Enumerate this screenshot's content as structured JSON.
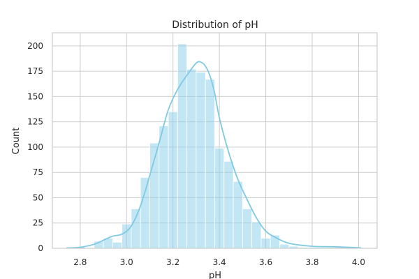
{
  "chart_data": {
    "type": "bar",
    "title": "Distribution of pH",
    "xlabel": "pH",
    "ylabel": "Count",
    "xlim": [
      2.68,
      4.08
    ],
    "ylim": [
      0,
      213
    ],
    "x_ticks": [
      2.8,
      3.0,
      3.2,
      3.4,
      3.6,
      3.8,
      4.0
    ],
    "x_tick_labels": [
      "2.8",
      "3.0",
      "3.2",
      "3.4",
      "3.6",
      "3.8",
      "4.0"
    ],
    "y_ticks": [
      0,
      25,
      50,
      75,
      100,
      125,
      150,
      175,
      200
    ],
    "y_tick_labels": [
      "0",
      "25",
      "50",
      "75",
      "100",
      "125",
      "150",
      "175",
      "200"
    ],
    "grid": true,
    "bar_color": "#87CEEB",
    "kde_color": "#7ecae3",
    "bins": [
      {
        "x0": 2.74,
        "x1": 2.78,
        "count": 1
      },
      {
        "x0": 2.78,
        "x1": 2.82,
        "count": 1
      },
      {
        "x0": 2.82,
        "x1": 2.86,
        "count": 0
      },
      {
        "x0": 2.86,
        "x1": 2.9,
        "count": 7
      },
      {
        "x0": 2.9,
        "x1": 2.94,
        "count": 10
      },
      {
        "x0": 2.94,
        "x1": 2.98,
        "count": 6
      },
      {
        "x0": 2.98,
        "x1": 3.02,
        "count": 24
      },
      {
        "x0": 3.02,
        "x1": 3.06,
        "count": 39
      },
      {
        "x0": 3.06,
        "x1": 3.1,
        "count": 70
      },
      {
        "x0": 3.1,
        "x1": 3.14,
        "count": 104
      },
      {
        "x0": 3.14,
        "x1": 3.18,
        "count": 121
      },
      {
        "x0": 3.18,
        "x1": 3.22,
        "count": 135
      },
      {
        "x0": 3.22,
        "x1": 3.26,
        "count": 202
      },
      {
        "x0": 3.26,
        "x1": 3.3,
        "count": 177
      },
      {
        "x0": 3.3,
        "x1": 3.34,
        "count": 174
      },
      {
        "x0": 3.34,
        "x1": 3.38,
        "count": 167
      },
      {
        "x0": 3.38,
        "x1": 3.42,
        "count": 99
      },
      {
        "x0": 3.42,
        "x1": 3.46,
        "count": 86
      },
      {
        "x0": 3.46,
        "x1": 3.5,
        "count": 66
      },
      {
        "x0": 3.5,
        "x1": 3.54,
        "count": 39
      },
      {
        "x0": 3.54,
        "x1": 3.58,
        "count": 26
      },
      {
        "x0": 3.58,
        "x1": 3.62,
        "count": 10
      },
      {
        "x0": 3.62,
        "x1": 3.66,
        "count": 13
      },
      {
        "x0": 3.66,
        "x1": 3.7,
        "count": 4
      },
      {
        "x0": 3.7,
        "x1": 3.74,
        "count": 2
      },
      {
        "x0": 3.74,
        "x1": 3.78,
        "count": 1
      },
      {
        "x0": 3.78,
        "x1": 3.82,
        "count": 1
      },
      {
        "x0": 3.82,
        "x1": 3.86,
        "count": 1
      },
      {
        "x0": 3.86,
        "x1": 3.9,
        "count": 1
      },
      {
        "x0": 3.9,
        "x1": 3.94,
        "count": 1
      },
      {
        "x0": 3.94,
        "x1": 3.98,
        "count": 1
      },
      {
        "x0": 3.98,
        "x1": 4.02,
        "count": 1
      }
    ],
    "kde": {
      "x": [
        2.74,
        2.8,
        2.86,
        2.9,
        2.94,
        2.98,
        3.02,
        3.06,
        3.1,
        3.14,
        3.18,
        3.22,
        3.26,
        3.3,
        3.32,
        3.34,
        3.36,
        3.38,
        3.4,
        3.44,
        3.48,
        3.52,
        3.56,
        3.6,
        3.64,
        3.7,
        3.8,
        3.9,
        4.01
      ],
      "y": [
        0.3,
        1,
        4,
        8,
        12,
        14,
        22,
        42,
        72,
        104,
        137,
        157,
        171,
        183,
        184,
        180,
        170,
        153,
        129,
        95,
        68,
        48,
        30,
        17,
        11,
        5,
        2,
        1.5,
        0.5
      ]
    }
  }
}
